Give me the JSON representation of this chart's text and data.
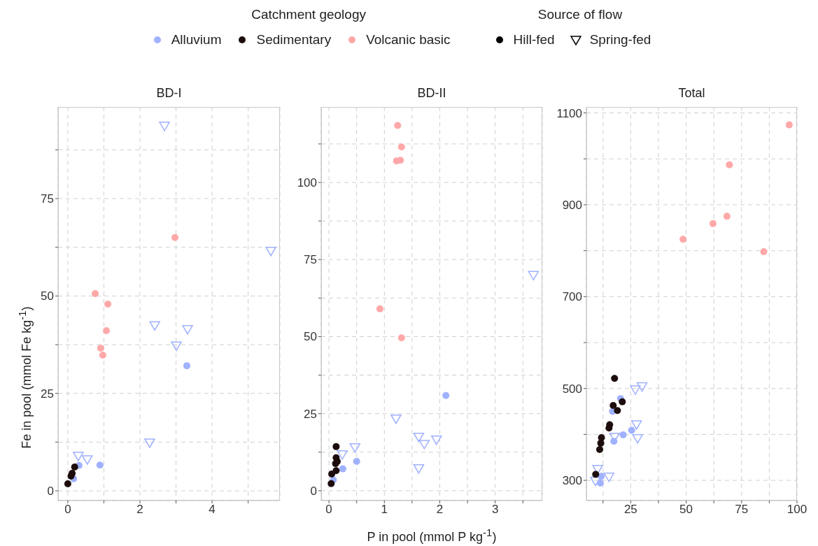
{
  "chart_data": [
    {
      "type": "scatter",
      "title": "BD-I",
      "ylabel": "Fe in pool (mmol Fe kg$^{-1}$)",
      "legend": "top",
      "legend_title": "Catchment geology",
      "annotations": [
        "Source of flow",
        "Hill-fed",
        "Spring-fed"
      ],
      "grid": true,
      "xlim": [
        -0.27,
        5.88
      ],
      "xticks": [
        0,
        {
          "value": 1,
          "label": null
        },
        2,
        {
          "value": 3,
          "label": null
        },
        4,
        {
          "value": 5,
          "label": null
        }
      ],
      "ylim": [
        -2.5,
        98.5
      ],
      "yticks": [
        0,
        {
          "value": 12.5,
          "label": null
        },
        25,
        {
          "value": 37.5,
          "label": null
        },
        50,
        {
          "value": 62.5,
          "label": null
        },
        75,
        {
          "value": 87.5,
          "label": null
        }
      ],
      "series": [
        {
          "name": "Alluvium",
          "color": "#a0b1ff",
          "marker": "circle",
          "x": [
            3.3,
            0.89,
            0.31,
            null,
            0.16
          ],
          "values": [
            32.1,
            6.6,
            6.5,
            null,
            3.1
          ]
        },
        {
          "color": "#a0b1ff",
          "marker": "triangle",
          "x": [
            2.68,
            5.63,
            2.41,
            3.32,
            3.01,
            2.27,
            0.29,
            0.54
          ],
          "values": [
            93.7,
            61.6,
            42.5,
            41.5,
            37.3,
            12.4,
            9.0,
            8.1
          ]
        },
        {
          "name": "Sedimentary",
          "color": "#1c0c0c",
          "marker": "circle",
          "x": [
            0,
            null,
            null,
            0.12,
            0.09,
            0.19
          ],
          "values": [
            1.8,
            null,
            null,
            4.5,
            3.8,
            6.1
          ]
        },
        {
          "name": "Volcanic basic",
          "color": "#ffa8a8",
          "marker": "circle",
          "x": [
            0.76,
            1.11,
            1.07,
            0.91,
            0.97,
            2.97
          ],
          "values": [
            50.6,
            47.9,
            41.1,
            36.6,
            34.8,
            65.0
          ]
        }
      ]
    },
    {
      "type": "scatter",
      "title": "BD-II",
      "xlabel": "P in pool (mmol P kg$^{-1}$)",
      "grid": true,
      "xlim": [
        -0.14,
        3.85
      ],
      "xticks": [
        0,
        {
          "value": 0.5,
          "label": null
        },
        1,
        {
          "value": 1.5,
          "label": null
        },
        2,
        {
          "value": 2.5,
          "label": null
        },
        3,
        {
          "value": 3.5,
          "label": null
        }
      ],
      "ylim": [
        -3.2,
        124.5
      ],
      "yticks": [
        0,
        {
          "value": 12.5,
          "label": null
        },
        25,
        {
          "value": 37.5,
          "label": null
        },
        50,
        {
          "value": 62.5,
          "label": null
        },
        75,
        {
          "value": 87.5,
          "label": null
        },
        100,
        {
          "value": 112.5,
          "label": null
        }
      ],
      "series": [
        {
          "color": "#a0b1ff",
          "marker": "circle",
          "x": [
            2.11,
            0.5,
            0.25,
            0.08
          ],
          "values": [
            30.9,
            9.5,
            7.1,
            3.5
          ]
        },
        {
          "color": "#a0b1ff",
          "marker": "triangle",
          "x": [
            3.69,
            1.21,
            1.62,
            1.72,
            1.94,
            1.62,
            0.47,
            0.24
          ],
          "values": [
            70,
            23.4,
            17.5,
            15.2,
            16.6,
            7.3,
            14.1,
            11.8
          ]
        },
        {
          "color": "#1c0c0c",
          "marker": "circle",
          "x": [
            0.13,
            0.13,
            0.15,
            0.12,
            0.13,
            0.05,
            0.04
          ],
          "values": [
            14.3,
            10.7,
            9.5,
            8.8,
            6.5,
            5.4,
            2.3
          ]
        },
        {
          "color": "#ffa8a8",
          "marker": "circle",
          "x": [
            1.24,
            1.31,
            1.22,
            1.29,
            0.92,
            1.31
          ],
          "values": [
            118.5,
            111.5,
            107.0,
            107.2,
            59.0,
            49.6
          ]
        }
      ]
    },
    {
      "type": "scatter",
      "title": "Total",
      "grid": true,
      "xlim": [
        5,
        100
      ],
      "xticks": [
        {
          "value": 12.5,
          "label": null
        },
        25,
        {
          "value": 37.5,
          "label": null
        },
        50,
        {
          "value": 62.5,
          "label": null
        },
        75,
        {
          "value": 87.5,
          "label": null
        },
        100
      ],
      "ylim": [
        256,
        1113
      ],
      "yticks": [
        300,
        {
          "value": 400,
          "label": null
        },
        500,
        {
          "value": 600,
          "label": null
        },
        700,
        {
          "value": 800,
          "label": null
        },
        900,
        {
          "value": 1000,
          "label": null
        },
        1100
      ],
      "series": [
        {
          "color": "#a0b1ff",
          "marker": "circle",
          "x": [
            20.4,
            16.8,
            17.4,
            21.6,
            25.4,
            11.7,
            11.3
          ],
          "values": [
            478,
            450,
            385,
            399,
            409,
            309,
            294
          ]
        },
        {
          "color": "#a0b1ff",
          "marker": "triangle",
          "x": [
            27.1,
            30.1,
            27.6,
            28.1,
            17.7,
            10.1,
            15.2,
            9.1
          ],
          "values": [
            498,
            505,
            422,
            392,
            395,
            325,
            308,
            299
          ]
        },
        {
          "color": "#1c0c0c",
          "marker": "circle",
          "x": [
            17.7,
            21.2,
            17.1,
            19.0,
            15.5,
            15.2,
            11.8,
            11.5,
            11.0,
            9.2
          ],
          "values": [
            522,
            471,
            463,
            452,
            421,
            414,
            393,
            381,
            367,
            313
          ]
        },
        {
          "color": "#ffa8a8",
          "marker": "circle",
          "x": [
            96.5,
            69.5,
            68.4,
            62.1,
            48.6,
            85.0
          ],
          "values": [
            1074,
            987,
            875,
            859,
            825,
            798
          ]
        }
      ]
    }
  ]
}
